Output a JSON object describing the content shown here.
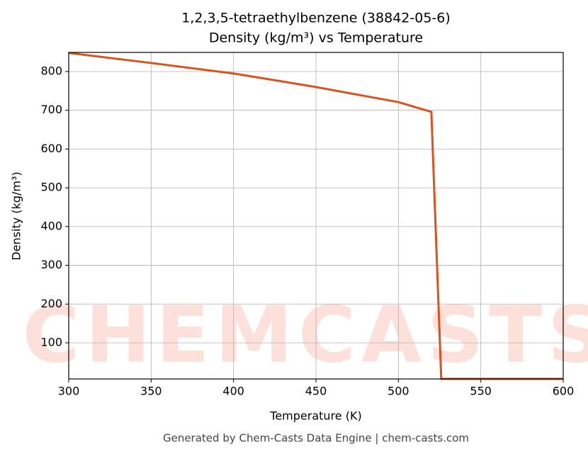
{
  "chart_data": {
    "type": "line",
    "title": "1,2,3,5-tetraethylbenzene (38842-05-6)",
    "subtitle": "Density (kg/m³) vs Temperature",
    "x_label": "Temperature (K)",
    "y_label": "Density (kg/m³)",
    "footer": "Generated by Chem-Casts Data Engine | chem-casts.com",
    "watermark": "CHEMCASTS",
    "x": [
      300,
      350,
      400,
      450,
      500,
      520,
      526,
      600
    ],
    "series": [
      {
        "name": "Density",
        "color": "#d9531e",
        "values": [
          848,
          822,
          795,
          760,
          721,
          696,
          7,
          7
        ]
      }
    ],
    "xlim": [
      300,
      600
    ],
    "xticks": [
      300,
      350,
      400,
      450,
      500,
      550,
      600
    ],
    "ylim": [
      6.8,
      849.3
    ],
    "yticks": [
      100,
      200,
      300,
      400,
      500,
      600,
      700,
      800
    ],
    "grid": true
  }
}
